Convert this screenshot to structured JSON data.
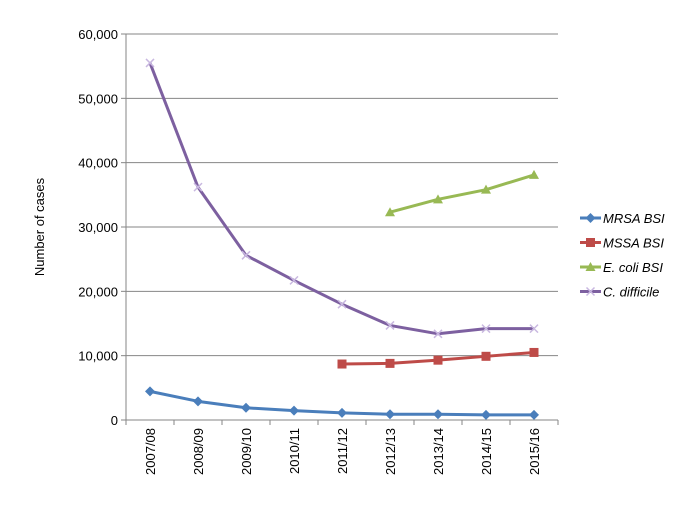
{
  "chart_data": {
    "type": "line",
    "title": "",
    "xlabel": "",
    "ylabel": "Number  of cases",
    "ylim": [
      0,
      60000
    ],
    "yticks": [
      0,
      10000,
      20000,
      30000,
      40000,
      50000,
      60000
    ],
    "ytick_labels": [
      "0",
      "10,000",
      "20,000",
      "30,000",
      "40,000",
      "50,000",
      "60,000"
    ],
    "grid": "horizontal",
    "legend_position": "right",
    "categories": [
      "2007/08",
      "2008/09",
      "2009/10",
      "2010/11",
      "2011/12",
      "2012/13",
      "2013/14",
      "2014/15",
      "2015/16"
    ],
    "series": [
      {
        "name": "MRSA BSI",
        "color": "#4a7ebb",
        "marker": "diamond",
        "values": [
          4450,
          2900,
          1900,
          1450,
          1100,
          900,
          900,
          800,
          800
        ]
      },
      {
        "name": "MSSA BSI",
        "color": "#be4b48",
        "marker": "square",
        "values": [
          null,
          null,
          null,
          null,
          8700,
          8800,
          9300,
          9900,
          10500
        ]
      },
      {
        "name": "E. coli BSI",
        "color": "#98b954",
        "marker": "triangle",
        "values": [
          null,
          null,
          null,
          null,
          null,
          32300,
          34300,
          35800,
          38100
        ]
      },
      {
        "name": "C. difficile",
        "color": "#7d60a0",
        "marker": "x",
        "values": [
          55500,
          36200,
          25600,
          21700,
          18000,
          14700,
          13400,
          14200,
          14200
        ]
      }
    ]
  }
}
